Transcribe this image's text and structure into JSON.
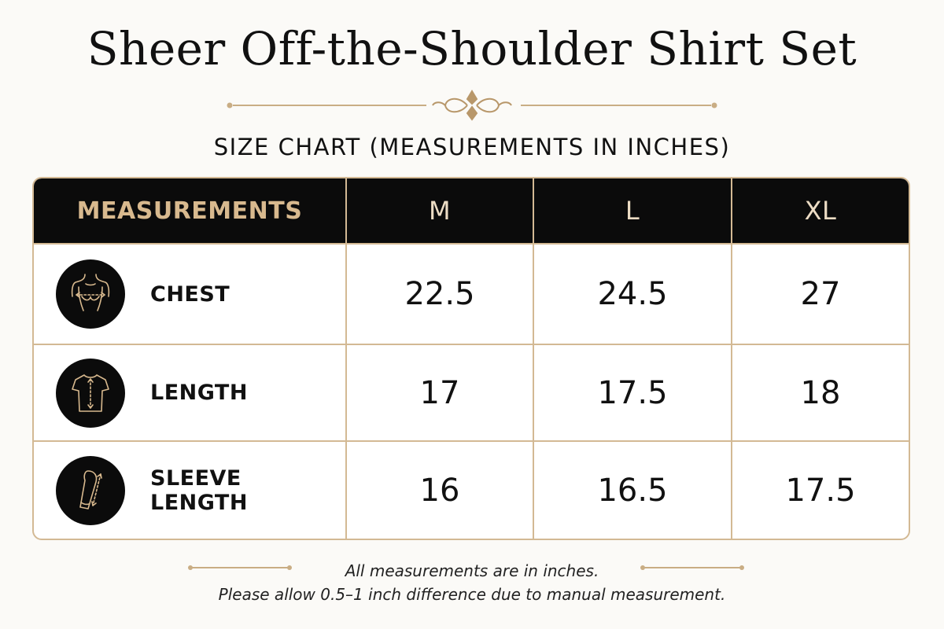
{
  "title": "Sheer Off-the-Shoulder Shirt Set",
  "subtitle": "SIZE CHART (MEASUREMENTS IN INCHES)",
  "colors": {
    "accent_gold": "#d3b994",
    "header_bg": "#0b0b0b",
    "background": "#fbfaf7"
  },
  "table": {
    "headers": [
      "MEASUREMENTS",
      "M",
      "L",
      "XL"
    ],
    "rows": [
      {
        "label": "CHEST",
        "icon": "chest-measure-icon",
        "values": [
          "22.5",
          "24.5",
          "27"
        ]
      },
      {
        "label": "LENGTH",
        "icon": "tshirt-length-icon",
        "values": [
          "17",
          "17.5",
          "18"
        ]
      },
      {
        "label": "SLEEVE LENGTH",
        "icon": "sleeve-length-icon",
        "values": [
          "16",
          "16.5",
          "17.5"
        ]
      }
    ]
  },
  "footer": {
    "line1": "All measurements are in inches.",
    "line2": "Please allow 0.5–1 inch difference due to manual measurement."
  }
}
